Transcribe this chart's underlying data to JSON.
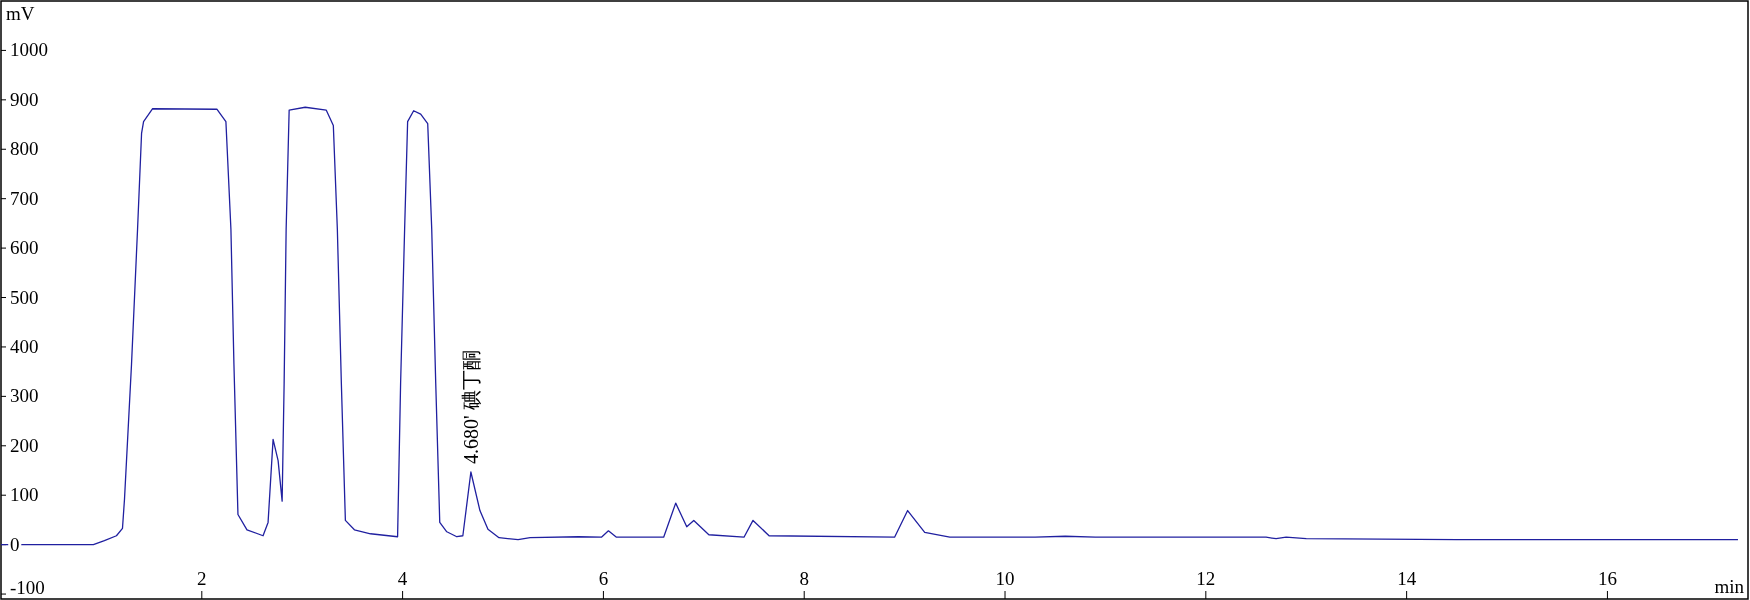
{
  "chart_data": {
    "type": "line",
    "xlabel": "min",
    "ylabel": "mV",
    "xlim": [
      0,
      17.4
    ],
    "ylim": [
      -110,
      1100
    ],
    "xticks": [
      2,
      4,
      6,
      8,
      10,
      12,
      14,
      16
    ],
    "yticks": [
      -100,
      0,
      100,
      200,
      300,
      400,
      500,
      600,
      700,
      800,
      900,
      1000
    ],
    "annotations": [
      {
        "text": "4.680' 碘丁酮",
        "x": 4.68,
        "y": 147
      }
    ],
    "series": [
      {
        "color": "#2020a0",
        "x": [
          0,
          0.92,
          1.03,
          1.15,
          1.21,
          1.23,
          1.3,
          1.36,
          1.4,
          1.42,
          1.51,
          2.15,
          2.24,
          2.29,
          2.32,
          2.36,
          2.45,
          2.61,
          2.66,
          2.71,
          2.76,
          2.8,
          2.82,
          2.84,
          2.87,
          3.03,
          3.24,
          3.31,
          3.35,
          3.39,
          3.43,
          3.52,
          3.68,
          3.95,
          3.98,
          4.02,
          4.05,
          4.11,
          4.18,
          4.25,
          4.29,
          4.33,
          4.37,
          4.44,
          4.54,
          4.6,
          4.68,
          4.77,
          4.85,
          4.96,
          5.15,
          5.27,
          5.75,
          5.98,
          6.05,
          6.13,
          6.6,
          6.72,
          6.83,
          6.9,
          7.05,
          7.4,
          7.49,
          7.65,
          8.9,
          9.03,
          9.2,
          9.45,
          10.3,
          10.6,
          10.9,
          12.6,
          12.7,
          12.8,
          13.0,
          14.5,
          17.3
        ],
        "values": [
          0,
          0,
          8,
          18,
          33,
          92,
          365,
          638,
          832,
          856,
          882,
          881,
          856,
          638,
          365,
          61,
          30,
          18,
          45,
          213,
          170,
          88,
          326,
          638,
          879,
          885,
          879,
          848,
          638,
          326,
          49,
          30,
          22,
          16,
          326,
          638,
          856,
          878,
          871,
          852,
          638,
          326,
          45,
          26,
          16,
          18,
          147,
          69,
          31,
          14,
          10,
          14,
          16,
          15,
          28,
          15,
          15,
          84,
          36,
          49,
          20,
          15,
          49,
          18,
          15,
          69,
          25,
          15,
          15,
          17,
          15,
          15,
          12,
          15,
          12,
          10,
          10
        ]
      }
    ]
  }
}
